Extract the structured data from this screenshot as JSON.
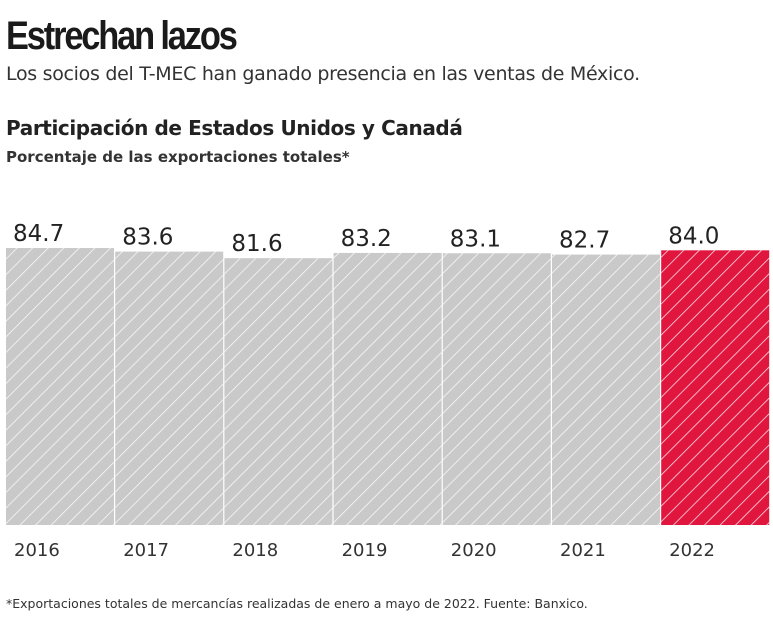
{
  "header": {
    "title": "Estrechan lazos",
    "subtitle": "Los socios del T-MEC han ganado presencia en las ventas de México."
  },
  "chart_data": {
    "type": "bar",
    "title": "Participación de Estados Unidos y Canadá",
    "subtitle": "Porcentaje de las exportaciones totales*",
    "categories": [
      "2016",
      "2017",
      "2018",
      "2019",
      "2020",
      "2021",
      "2022"
    ],
    "values": [
      84.7,
      83.6,
      81.6,
      83.2,
      83.1,
      82.7,
      84.0
    ],
    "data_labels": [
      "84.7",
      "83.6",
      "81.6",
      "83.2",
      "83.1",
      "82.7",
      "84.0"
    ],
    "bar_pattern": "diagonal-hatch",
    "colors": {
      "default": "#c9c9c9",
      "highlight": "#e0163f"
    },
    "highlight_category": "2022",
    "grid": false
  },
  "footer": {
    "note": "*Exportaciones totales de mercancías realizadas de enero a mayo de 2022. Fuente: Banxico."
  }
}
